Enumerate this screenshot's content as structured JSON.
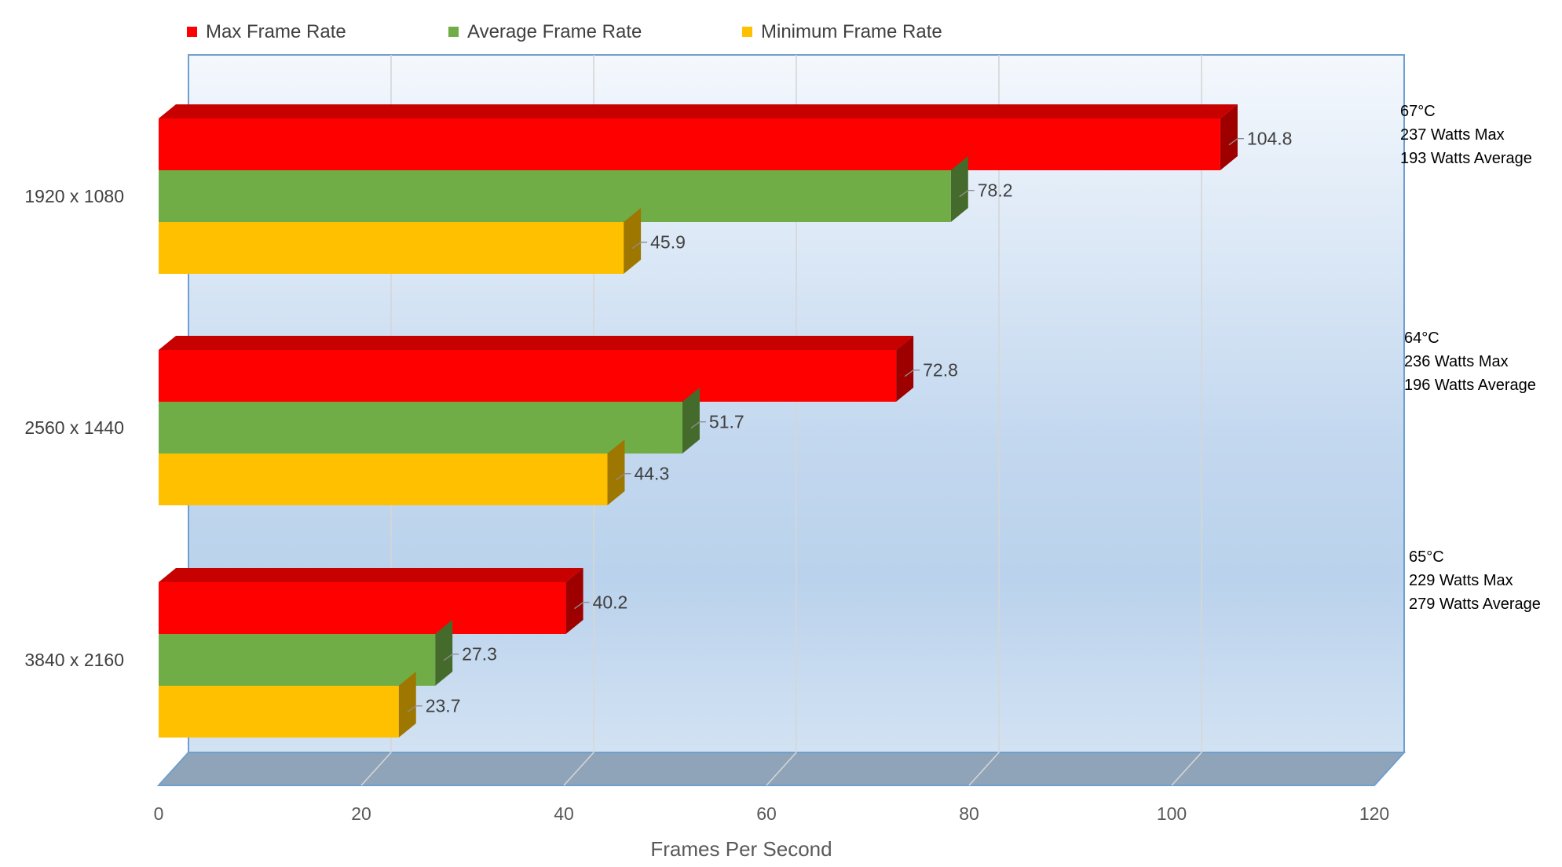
{
  "chart_data": {
    "type": "bar",
    "orientation": "horizontal",
    "style": "3d",
    "categories": [
      "1920 x 1080",
      "2560 x 1440",
      "3840 x 2160"
    ],
    "series": [
      {
        "name": "Max Frame Rate",
        "color": "#ff0000",
        "values": [
          104.8,
          72.8,
          40.2
        ]
      },
      {
        "name": "Average Frame Rate",
        "color": "#70ad47",
        "values": [
          78.2,
          51.7,
          27.3
        ]
      },
      {
        "name": "Minimum Frame Rate",
        "color": "#ffc000",
        "values": [
          45.9,
          44.3,
          23.7
        ]
      }
    ],
    "xlabel": "Frames Per Second",
    "xlim": [
      0,
      120
    ],
    "xticks": [
      "0",
      "20",
      "40",
      "60",
      "80",
      "100",
      "120"
    ],
    "grid": true,
    "legend_position": "top",
    "annotations": [
      {
        "category": "1920 x 1080",
        "lines": [
          "67°C",
          "237 Watts Max",
          "193 Watts Average"
        ]
      },
      {
        "category": "2560 x 1440",
        "lines": [
          "64°C",
          "236 Watts Max",
          "196 Watts Average"
        ]
      },
      {
        "category": "3840 x 2160",
        "lines": [
          "65°C",
          "229 Watts Max",
          "279 Watts Average"
        ]
      }
    ]
  }
}
